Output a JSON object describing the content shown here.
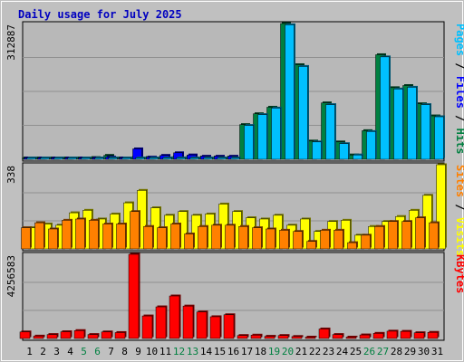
{
  "chart_data": {
    "type": "bar",
    "title": "Daily usage for July 2025",
    "days": [
      "1",
      "2",
      "3",
      "4",
      "5",
      "6",
      "7",
      "8",
      "9",
      "10",
      "11",
      "12",
      "13",
      "14",
      "15",
      "16",
      "17",
      "18",
      "19",
      "20",
      "21",
      "22",
      "23",
      "24",
      "25",
      "26",
      "27",
      "28",
      "29",
      "30",
      "31"
    ],
    "weekend_days": [
      "5",
      "6",
      "12",
      "13",
      "19",
      "20",
      "26",
      "27"
    ],
    "colors": {
      "background": "#c0c0c0",
      "plot_background": "#b8b8b8",
      "title": "#0000c0",
      "hits": "#008040",
      "files": "#0000ff",
      "pages": "#00c0ff",
      "visits": "#ffff00",
      "sites": "#ff8000",
      "kbytes": "#ff0000",
      "weekend_label": "#008040"
    },
    "panels": [
      {
        "id": "pages-files-hits",
        "ymax_label": "312887",
        "ymax": 312887,
        "side_label": [
          {
            "text": "Pages",
            "color": "#00c0ff"
          },
          {
            "text": " / ",
            "color": "#000000"
          },
          {
            "text": "Files",
            "color": "#0000ff"
          },
          {
            "text": " / ",
            "color": "#000000"
          },
          {
            "text": "Hits",
            "color": "#008040"
          }
        ],
        "series": [
          {
            "name": "Hits",
            "color": "#008040",
            "values": [
              2000,
              2000,
              2000,
              2500,
              3000,
              4000,
              9000,
              3000,
              5000,
              4000,
              5000,
              6000,
              6000,
              5000,
              5000,
              5000,
              80000,
              105000,
              120000,
              312887,
              218000,
              42000,
              130000,
              40000,
              10000,
              66000,
              241000,
              165000,
              170000,
              128000,
              100000
            ]
          },
          {
            "name": "Files",
            "color": "#0000ff",
            "values": [
              1500,
              1500,
              1500,
              2000,
              2500,
              3000,
              5000,
              2500,
              24000,
              5000,
              9000,
              15000,
              10000,
              7000,
              7000,
              7000,
              0,
              0,
              0,
              0,
              0,
              0,
              0,
              0,
              0,
              0,
              0,
              0,
              0,
              0,
              0
            ]
          },
          {
            "name": "Pages",
            "color": "#00c0ff",
            "values": [
              1000,
              1000,
              1000,
              1000,
              1000,
              1500,
              2000,
              1500,
              2000,
              2000,
              2500,
              3000,
              3000,
              3000,
              3000,
              3000,
              78000,
              103000,
              118000,
              310000,
              214000,
              40000,
              126000,
              36000,
              10000,
              64000,
              236000,
              162000,
              166000,
              126000,
              98000
            ]
          }
        ]
      },
      {
        "id": "visits-sites",
        "ymax_label": "338",
        "ymax": 338,
        "side_label": [
          {
            "text": "Sites",
            "color": "#ff8000"
          },
          {
            "text": " / ",
            "color": "#000000"
          },
          {
            "text": "Visits",
            "color": "#ffff00"
          }
        ],
        "series": [
          {
            "name": "Visits",
            "color": "#ffff00",
            "values": [
              85,
              100,
              95,
              145,
              155,
              120,
              140,
              185,
              235,
              165,
              135,
              150,
              135,
              140,
              180,
              150,
              125,
              120,
              135,
              95,
              120,
              70,
              110,
              115,
              55,
              90,
              110,
              130,
              155,
              215,
              338
            ]
          },
          {
            "name": "Sites",
            "color": "#ff8000",
            "values": [
              85,
              105,
              80,
              115,
              120,
              115,
              100,
              100,
              150,
              90,
              85,
              100,
              60,
              90,
              95,
              95,
              90,
              85,
              80,
              75,
              70,
              30,
              75,
              75,
              25,
              55,
              90,
              110,
              110,
              125,
              105
            ]
          }
        ]
      },
      {
        "id": "kbytes",
        "ymax_label": "4256583",
        "ymax": 4256583,
        "side_label": [
          {
            "text": "KBytes",
            "color": "#ff0000"
          }
        ],
        "series": [
          {
            "name": "KBytes",
            "color": "#ff0000",
            "values": [
              330000,
              120000,
              200000,
              340000,
              400000,
              200000,
              330000,
              300000,
              4256583,
              1140000,
              1600000,
              2150000,
              1640000,
              1340000,
              1100000,
              1200000,
              150000,
              170000,
              110000,
              150000,
              100000,
              50000,
              480000,
              200000,
              60000,
              180000,
              260000,
              370000,
              360000,
              290000,
              310000
            ]
          }
        ]
      }
    ]
  }
}
